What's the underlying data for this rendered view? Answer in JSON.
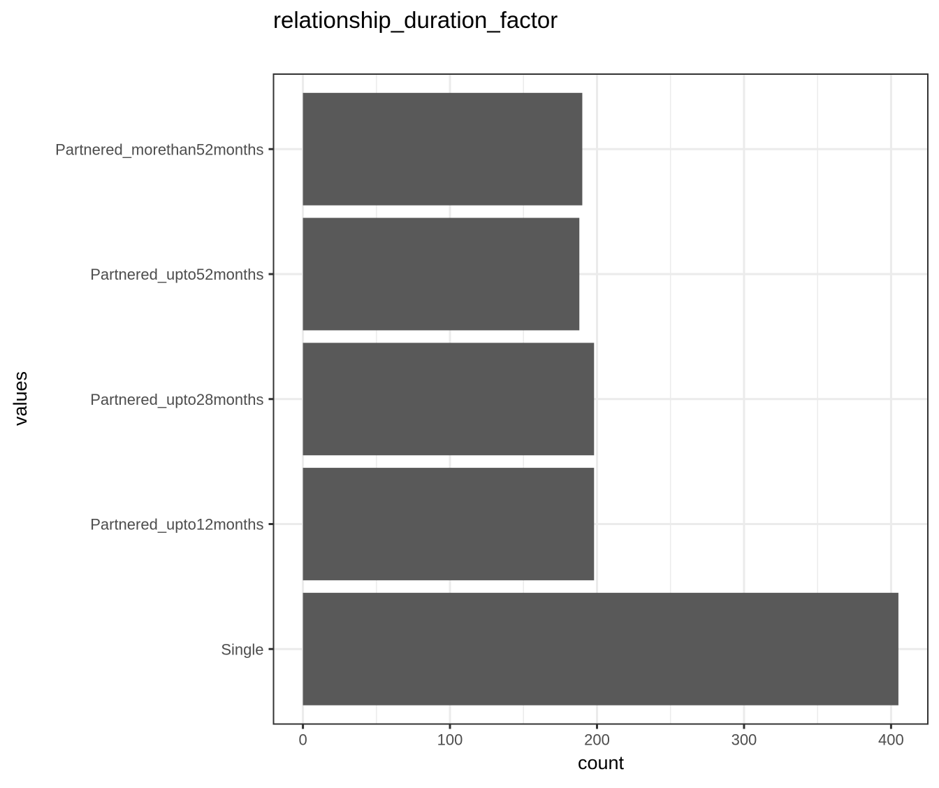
{
  "chart_data": {
    "type": "bar",
    "orientation": "horizontal",
    "title": "relationship_duration_factor",
    "xlabel": "count",
    "ylabel": "values",
    "categories": [
      "Partnered_morethan52months",
      "Partnered_upto52months",
      "Partnered_upto28months",
      "Partnered_upto12months",
      "Single"
    ],
    "values": [
      190,
      188,
      198,
      198,
      405
    ],
    "xlim": [
      -20,
      425
    ],
    "xticks": [
      0,
      100,
      200,
      300,
      400
    ],
    "x_tick_labels": [
      "0",
      "100",
      "200",
      "300",
      "400"
    ],
    "grid": true,
    "legend": "none",
    "bar_color": "#595959",
    "grid_color": "#ebebeb",
    "panel_border_color": "#333333",
    "theme": "bw"
  }
}
